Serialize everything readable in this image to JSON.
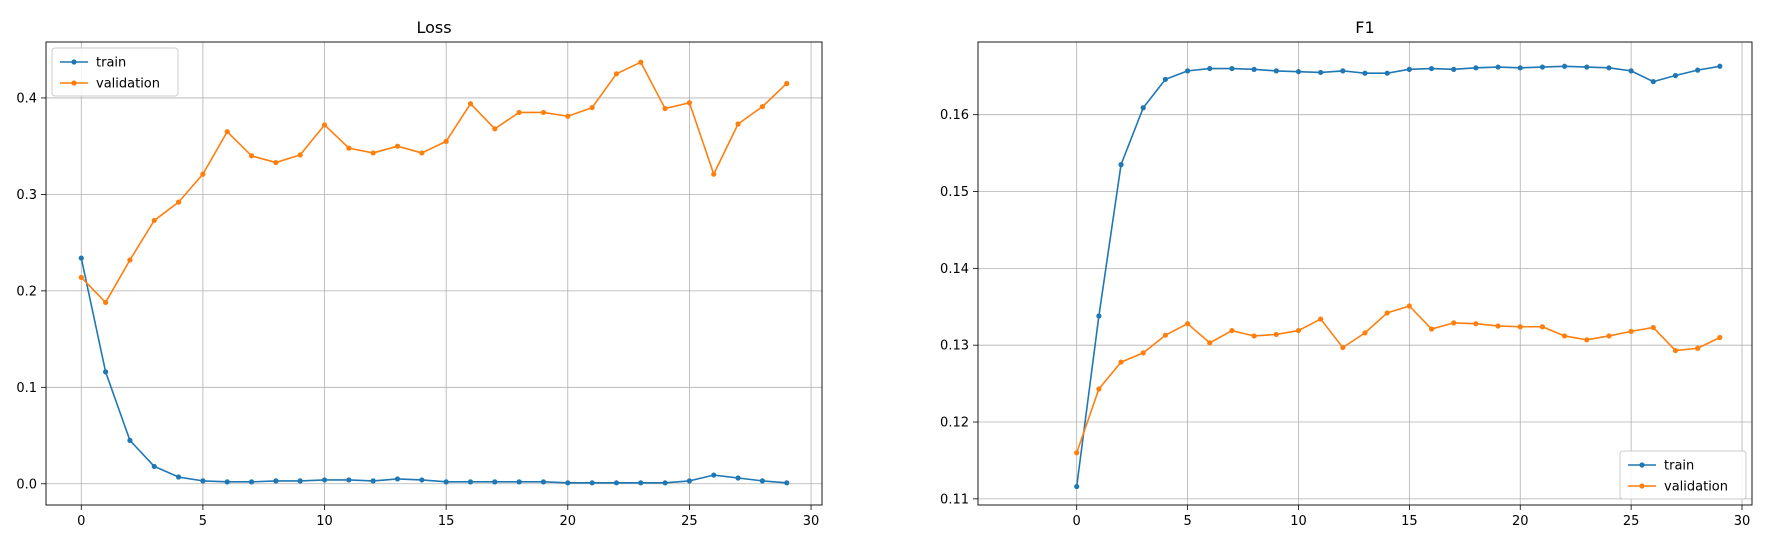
{
  "chart_data": [
    {
      "type": "line",
      "title": "Loss",
      "xlabel": "",
      "ylabel": "",
      "xlim": [
        -1.45,
        30.45
      ],
      "ylim": [
        -0.022,
        0.458
      ],
      "xticks": [
        0,
        5,
        10,
        15,
        20,
        25,
        30
      ],
      "yticks": [
        0.0,
        0.1,
        0.2,
        0.3,
        0.4
      ],
      "ytick_labels": [
        "0.0",
        "0.1",
        "0.2",
        "0.3",
        "0.4"
      ],
      "grid": true,
      "legend": "upper left",
      "x": [
        0,
        1,
        2,
        3,
        4,
        5,
        6,
        7,
        8,
        9,
        10,
        11,
        12,
        13,
        14,
        15,
        16,
        17,
        18,
        19,
        20,
        21,
        22,
        23,
        24,
        25,
        26,
        27,
        28,
        29
      ],
      "series": [
        {
          "name": "train",
          "color": "#1f77b4",
          "values": [
            0.234,
            0.116,
            0.045,
            0.018,
            0.007,
            0.003,
            0.002,
            0.002,
            0.003,
            0.003,
            0.004,
            0.004,
            0.003,
            0.005,
            0.004,
            0.002,
            0.002,
            0.002,
            0.002,
            0.002,
            0.001,
            0.001,
            0.001,
            0.001,
            0.001,
            0.003,
            0.009,
            0.006,
            0.003,
            0.001
          ]
        },
        {
          "name": "validation",
          "color": "#ff7f0e",
          "values": [
            0.214,
            0.188,
            0.232,
            0.273,
            0.292,
            0.321,
            0.365,
            0.34,
            0.333,
            0.341,
            0.372,
            0.348,
            0.343,
            0.35,
            0.343,
            0.355,
            0.394,
            0.368,
            0.385,
            0.385,
            0.381,
            0.39,
            0.425,
            0.437,
            0.389,
            0.395,
            0.321,
            0.373,
            0.391,
            0.415
          ]
        }
      ]
    },
    {
      "type": "line",
      "title": "F1",
      "xlabel": "",
      "ylabel": "",
      "xlim": [
        -4.45,
        30.45
      ],
      "ylim": [
        0.1092,
        0.16946
      ],
      "xticks": [
        0,
        5,
        10,
        15,
        20,
        25,
        30
      ],
      "yticks": [
        0.11,
        0.12,
        0.13,
        0.14,
        0.15,
        0.16
      ],
      "ytick_labels": [
        "0.11",
        "0.12",
        "0.13",
        "0.14",
        "0.15",
        "0.16"
      ],
      "grid": true,
      "legend": "lower right",
      "x": [
        0,
        1,
        2,
        3,
        4,
        5,
        6,
        7,
        8,
        9,
        10,
        11,
        12,
        13,
        14,
        15,
        16,
        17,
        18,
        19,
        20,
        21,
        22,
        23,
        24,
        25,
        26,
        27,
        28,
        29
      ],
      "series": [
        {
          "name": "train",
          "color": "#1f77b4",
          "values": [
            0.1116,
            0.1338,
            0.1535,
            0.1609,
            0.1646,
            0.1657,
            0.166,
            0.166,
            0.1659,
            0.1657,
            0.1656,
            0.1655,
            0.1657,
            0.1654,
            0.1654,
            0.1659,
            0.166,
            0.1659,
            0.1661,
            0.1662,
            0.1661,
            0.1662,
            0.1663,
            0.1662,
            0.1661,
            0.1657,
            0.1643,
            0.1651,
            0.1658,
            0.1663
          ]
        },
        {
          "name": "validation",
          "color": "#ff7f0e",
          "values": [
            0.116,
            0.1243,
            0.1278,
            0.129,
            0.1313,
            0.1328,
            0.1303,
            0.1319,
            0.1312,
            0.1314,
            0.1319,
            0.1334,
            0.1297,
            0.1316,
            0.1342,
            0.1351,
            0.1321,
            0.1329,
            0.1328,
            0.1325,
            0.1324,
            0.1324,
            0.1312,
            0.1307,
            0.1312,
            0.1318,
            0.1323,
            0.1293,
            0.1296,
            0.131
          ]
        }
      ]
    }
  ]
}
